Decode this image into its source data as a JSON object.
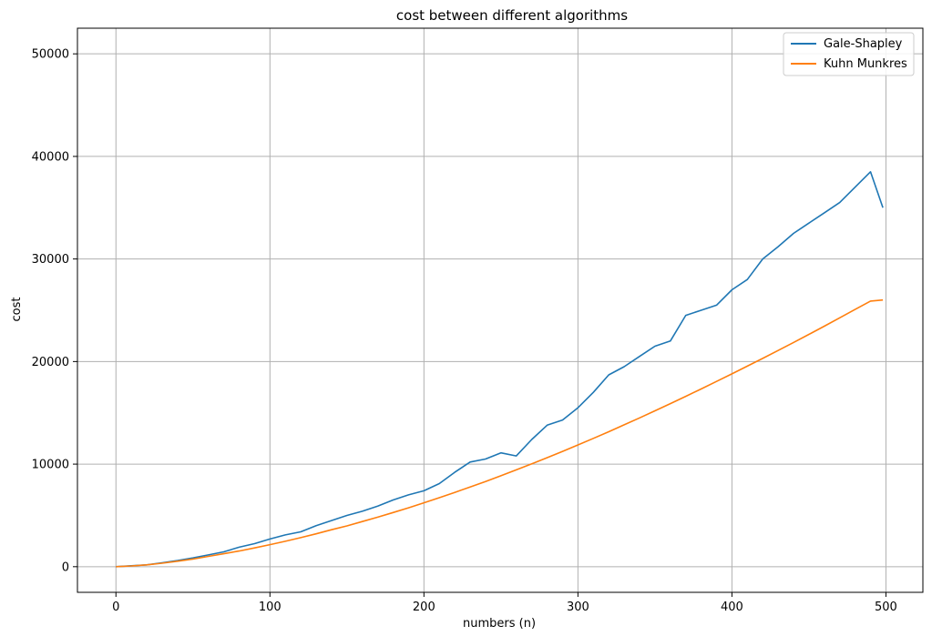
{
  "chart_data": {
    "type": "line",
    "title": "cost between different algorithms",
    "xlabel": "numbers (n)",
    "ylabel": "cost",
    "xlim": [
      -25,
      524
    ],
    "ylim": [
      -2500,
      52500
    ],
    "xticks": [
      0,
      100,
      200,
      300,
      400,
      500
    ],
    "yticks": [
      0,
      10000,
      20000,
      30000,
      40000,
      50000
    ],
    "xtick_labels": [
      "0",
      "100",
      "200",
      "300",
      "400",
      "500"
    ],
    "ytick_labels": [
      "0",
      "10000",
      "20000",
      "30000",
      "40000",
      "50000"
    ],
    "grid": true,
    "legend_position": "top-right",
    "series": [
      {
        "name": "Gale-Shapley",
        "color": "#1f77b4",
        "x": [
          0,
          10,
          20,
          30,
          40,
          50,
          60,
          70,
          80,
          90,
          100,
          110,
          120,
          130,
          140,
          150,
          160,
          170,
          180,
          190,
          200,
          210,
          220,
          230,
          240,
          250,
          260,
          270,
          280,
          290,
          300,
          310,
          320,
          330,
          340,
          350,
          360,
          370,
          380,
          390,
          400,
          410,
          420,
          430,
          440,
          450,
          460,
          470,
          480,
          490,
          498
        ],
        "y": [
          0,
          90,
          180,
          380,
          600,
          850,
          1150,
          1450,
          1900,
          2250,
          2700,
          3100,
          3400,
          4000,
          4500,
          5000,
          5400,
          5900,
          6500,
          7000,
          7400,
          8100,
          9200,
          10200,
          10500,
          11100,
          10800,
          12400,
          13800,
          14300,
          15500,
          17000,
          18700,
          19500,
          20500,
          21500,
          22000,
          24500,
          25000,
          25500,
          27000,
          28000,
          30000,
          31200,
          32500,
          33500,
          34500,
          35500,
          37000,
          38500,
          35000
        ]
      },
      {
        "name": "Kuhn Munkres",
        "color": "#ff7f0e",
        "x": [
          0,
          10,
          20,
          30,
          40,
          50,
          60,
          70,
          80,
          90,
          100,
          110,
          120,
          130,
          140,
          150,
          160,
          170,
          180,
          190,
          200,
          210,
          220,
          230,
          240,
          250,
          260,
          270,
          280,
          290,
          300,
          310,
          320,
          330,
          340,
          350,
          360,
          370,
          380,
          390,
          400,
          410,
          420,
          430,
          440,
          450,
          460,
          470,
          480,
          490,
          498
        ],
        "y": [
          0,
          70,
          180,
          340,
          530,
          750,
          1000,
          1260,
          1530,
          1830,
          2150,
          2480,
          2830,
          3200,
          3600,
          3980,
          4400,
          4830,
          5280,
          5740,
          6230,
          6730,
          7240,
          7770,
          8300,
          8860,
          9440,
          10030,
          10630,
          11240,
          11870,
          12510,
          13160,
          13830,
          14510,
          15200,
          15900,
          16610,
          17330,
          18060,
          18800,
          19550,
          20310,
          21080,
          21860,
          22650,
          23450,
          24260,
          25080,
          25900,
          26000
        ]
      }
    ]
  }
}
